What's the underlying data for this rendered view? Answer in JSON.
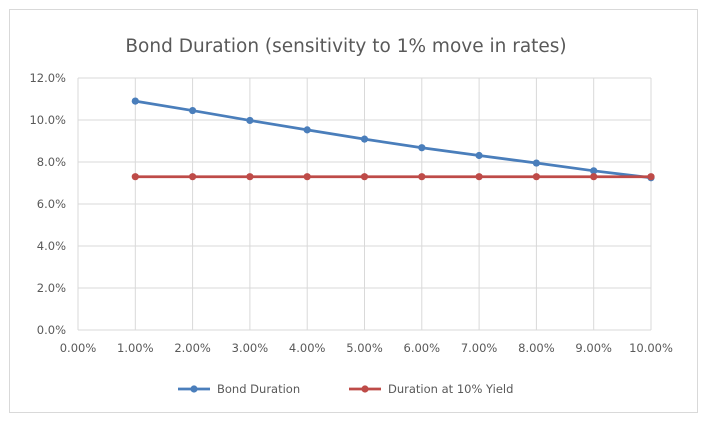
{
  "chart_data": {
    "type": "line",
    "title": "Bond Duration (sensitivity to 1% move in rates)",
    "xlabel": "",
    "ylabel": "",
    "x": [
      "0.00%",
      "1.00%",
      "2.00%",
      "3.00%",
      "4.00%",
      "5.00%",
      "6.00%",
      "7.00%",
      "8.00%",
      "9.00%",
      "10.00%"
    ],
    "x_values": [
      0,
      1,
      2,
      3,
      4,
      5,
      6,
      7,
      8,
      9,
      10
    ],
    "xlim": [
      0,
      10
    ],
    "ylim": [
      0,
      12
    ],
    "yticks": [
      "0.0%",
      "2.0%",
      "4.0%",
      "6.0%",
      "8.0%",
      "10.0%",
      "12.0%"
    ],
    "grid": true,
    "legend": "bottom",
    "series": [
      {
        "name": "Bond Duration",
        "color": "#4a7ebb",
        "x": [
          1,
          2,
          3,
          4,
          5,
          6,
          7,
          8,
          9,
          10
        ],
        "values": [
          10.9,
          10.45,
          9.98,
          9.53,
          9.09,
          8.68,
          8.31,
          7.95,
          7.58,
          7.25
        ]
      },
      {
        "name": "Duration at 10% Yield",
        "color": "#be4b48",
        "x": [
          1,
          2,
          3,
          4,
          5,
          6,
          7,
          8,
          9,
          10
        ],
        "values": [
          7.3,
          7.3,
          7.3,
          7.3,
          7.3,
          7.3,
          7.3,
          7.3,
          7.3,
          7.3
        ]
      }
    ]
  }
}
